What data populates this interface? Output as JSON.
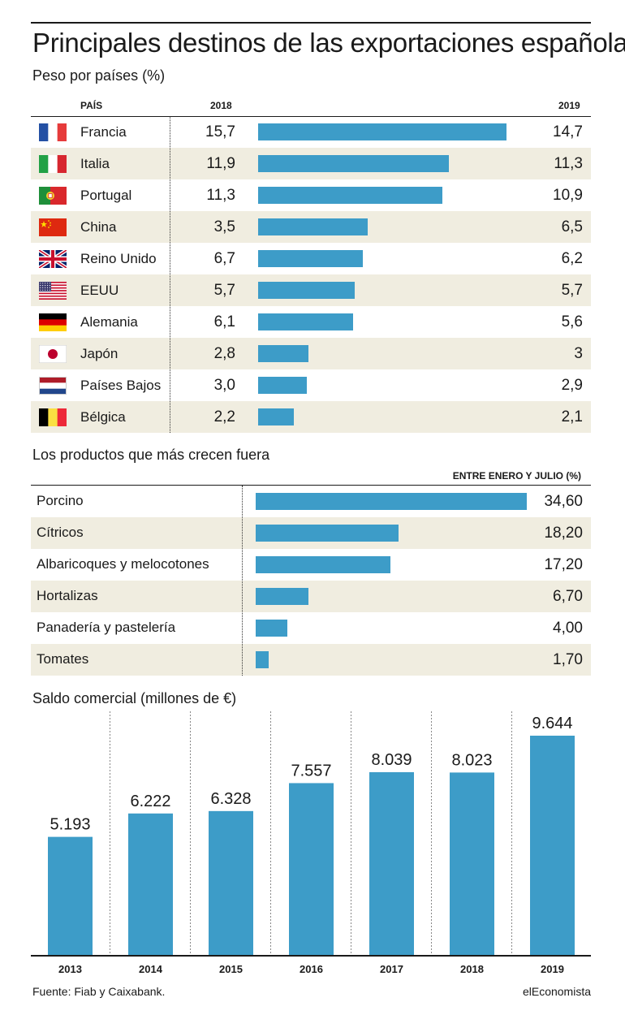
{
  "title": "Principales destinos de las exportaciones españolas",
  "section_paises": {
    "subtitle": "Peso por países (%)",
    "col_pais": "PAÍS",
    "col_2018": "2018",
    "col_2019": "2019"
  },
  "section_productos": {
    "subtitle": "Los productos que más crecen fuera",
    "col_header": "ENTRE ENERO Y JULIO (%)"
  },
  "section_saldo": {
    "subtitle": "Saldo comercial (millones de €)"
  },
  "footer": {
    "source": "Fuente: Fiab y Caixabank.",
    "brand": "elEconomista"
  },
  "colors": {
    "bar": "#3d9cc8",
    "shade": "#f0ede0"
  },
  "chart_data": [
    {
      "type": "bar",
      "orientation": "horizontal",
      "categories": [
        "Francia",
        "Italia",
        "Portugal",
        "China",
        "Reino Unido",
        "EEUU",
        "Alemania",
        "Japón",
        "Países Bajos",
        "Bélgica"
      ],
      "flag_icons": [
        "flag-france-icon",
        "flag-italy-icon",
        "flag-portugal-icon",
        "flag-china-icon",
        "flag-uk-icon",
        "flag-usa-icon",
        "flag-germany-icon",
        "flag-japan-icon",
        "flag-netherlands-icon",
        "flag-belgium-icon"
      ],
      "values_2018_text": [
        "15,7",
        "11,9",
        "11,3",
        "3,5",
        "6,7",
        "5,7",
        "6,1",
        "2,8",
        "3,0",
        "2,2"
      ],
      "values_2019_text": [
        "14,7",
        "11,3",
        "10,9",
        "6,5",
        "6,2",
        "5,7",
        "5,6",
        "3",
        "2,9",
        "2,1"
      ],
      "series": [
        {
          "name": "2018",
          "values": [
            15.7,
            11.9,
            11.3,
            3.5,
            6.7,
            5.7,
            6.1,
            2.8,
            3.0,
            2.2
          ]
        },
        {
          "name": "2019",
          "values": [
            14.7,
            11.3,
            10.9,
            6.5,
            6.2,
            5.7,
            5.6,
            3.0,
            2.9,
            2.1
          ]
        }
      ],
      "bar_series": "2019",
      "xlim": [
        0,
        15.7
      ]
    },
    {
      "type": "bar",
      "orientation": "horizontal",
      "categories": [
        "Porcino",
        "Cítricos",
        "Albaricoques y melocotones",
        "Hortalizas",
        "Panadería y pastelería",
        "Tomates"
      ],
      "values": [
        34.6,
        18.2,
        17.2,
        6.7,
        4.0,
        1.7
      ],
      "value_labels": [
        "34,60",
        "18,20",
        "17,20",
        "6,70",
        "4,00",
        "1,70"
      ],
      "xlim": [
        0,
        34.6
      ]
    },
    {
      "type": "bar",
      "categories": [
        "2013",
        "2014",
        "2015",
        "2016",
        "2017",
        "2018",
        "2019"
      ],
      "values": [
        5193,
        6222,
        6328,
        7557,
        8039,
        8023,
        9644
      ],
      "value_labels": [
        "5.193",
        "6.222",
        "6.328",
        "7.557",
        "8.039",
        "8.023",
        "9.644"
      ],
      "ylim": [
        0,
        9644
      ]
    }
  ]
}
